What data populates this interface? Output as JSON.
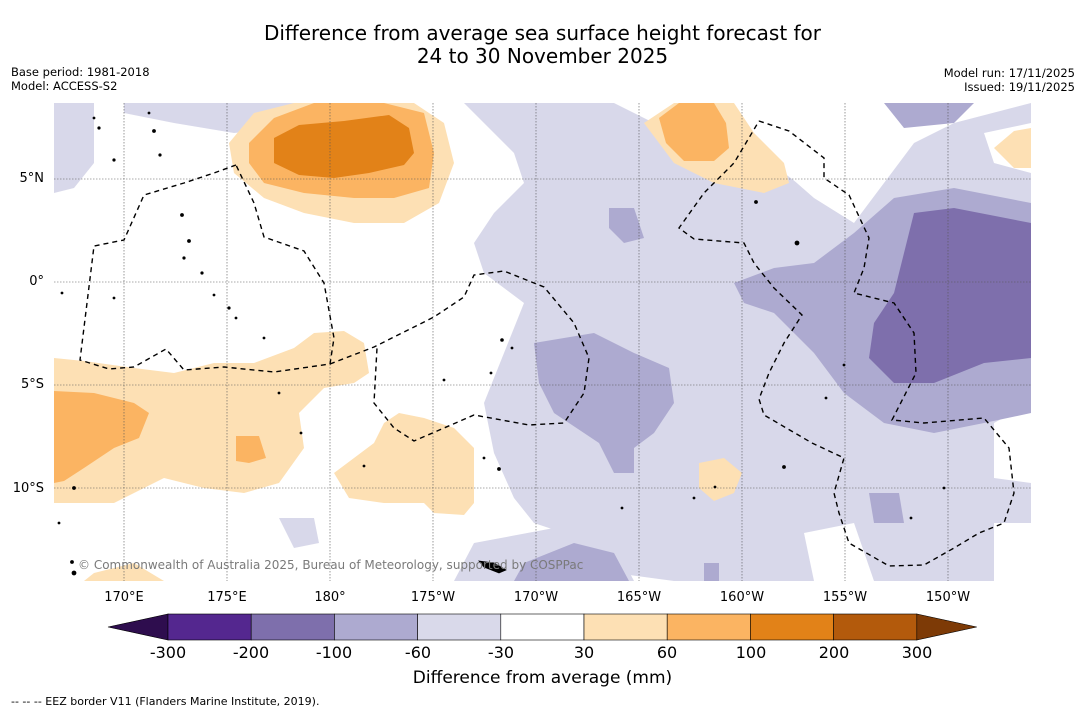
{
  "title_line1": "Difference from average sea surface height forecast for",
  "title_line2": "24 to 30 November 2025",
  "base_period": "Base period: 1981-2018",
  "model": "Model: ACCESS-S2",
  "model_run": "Model run: 17/11/2025",
  "issued": "Issued: 19/11/2025",
  "lat_labels": [
    "5°N",
    "0°",
    "5°S",
    "10°S"
  ],
  "lon_labels": [
    "170°E",
    "175°E",
    "180°",
    "175°W",
    "170°W",
    "165°W",
    "160°W",
    "155°W",
    "150°W"
  ],
  "copyright": "© Commonwealth of Australia 2025, Bureau of Meteorology, supported by COSPPac",
  "colorbar": {
    "ticks": [
      "-300",
      "-200",
      "-100",
      "-60",
      "-30",
      "30",
      "60",
      "100",
      "200",
      "300"
    ],
    "colors": [
      "#2e0d4e",
      "#54278f",
      "#7e6fac",
      "#adaad0",
      "#d9d9ea",
      "#ffffff",
      "#fde0b4",
      "#fbb462",
      "#e28218",
      "#b35a0c",
      "#7d3a06"
    ],
    "title": "Difference from average (mm)"
  },
  "eez_note": "-- -- -- EEZ border V11 (Flanders Marine Institute, 2019)."
}
